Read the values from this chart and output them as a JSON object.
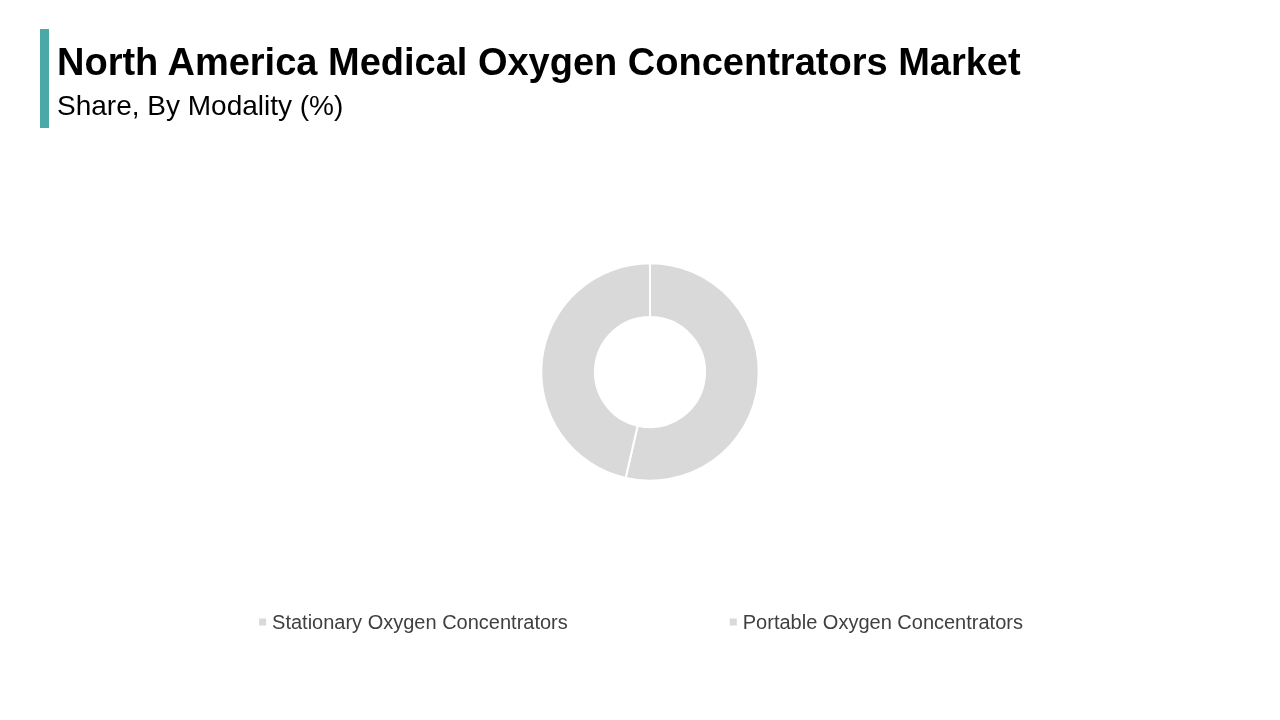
{
  "chart_data": {
    "type": "donut",
    "title": "North America Medical Oxygen Concentrators Market",
    "subtitle": "Share, By Modality (%)",
    "categories": [
      "Stationary Oxygen Concentrators",
      "Portable Oxygen Concentrators"
    ],
    "values": [
      53.6,
      46.4
    ],
    "colors": [
      "#d9d9d9",
      "#d9d9d9"
    ],
    "legend": "bottom"
  }
}
